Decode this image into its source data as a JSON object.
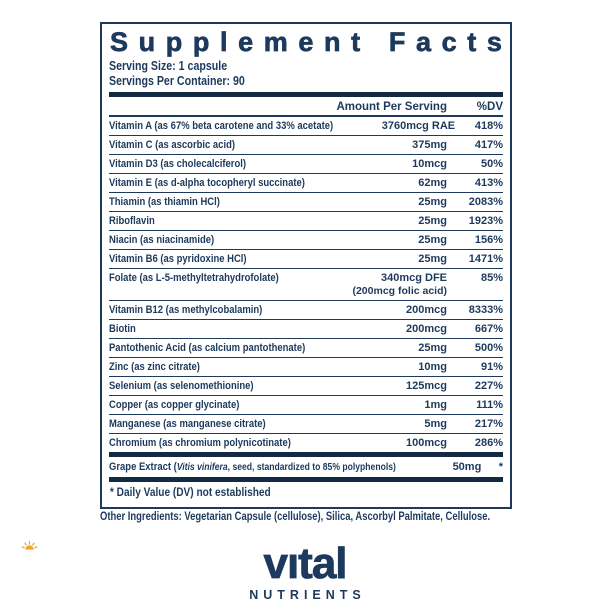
{
  "panel": {
    "title": "Supplement Facts",
    "serving_size": "Serving Size: 1 capsule",
    "servings_per_container": "Servings Per Container: 90",
    "columns": {
      "amount": "Amount Per Serving",
      "dv": "%DV"
    },
    "rows": [
      {
        "name": "Vitamin A (as 67% beta carotene and 33% acetate)",
        "amount": "3760mcg RAE",
        "dv": "418%"
      },
      {
        "name": "Vitamin C (as ascorbic acid)",
        "amount": "375mg",
        "dv": "417%"
      },
      {
        "name": "Vitamin D3 (as cholecalciferol)",
        "amount": "10mcg",
        "dv": "50%"
      },
      {
        "name": "Vitamin E (as d-alpha tocopheryl succinate)",
        "amount": "62mg",
        "dv": "413%"
      },
      {
        "name": "Thiamin (as thiamin HCl)",
        "amount": "25mg",
        "dv": "2083%"
      },
      {
        "name": "Riboflavin",
        "amount": "25mg",
        "dv": "1923%"
      },
      {
        "name": "Niacin (as niacinamide)",
        "amount": "25mg",
        "dv": "156%"
      },
      {
        "name": "Vitamin B6 (as pyridoxine HCl)",
        "amount": "25mg",
        "dv": "1471%"
      },
      {
        "name": "Folate (as L-5-methyltetrahydrofolate)",
        "amount": "340mcg DFE",
        "amount_note": "(200mcg folic acid)",
        "dv": "85%"
      },
      {
        "name": "Vitamin B12 (as methylcobalamin)",
        "amount": "200mcg",
        "dv": "8333%"
      },
      {
        "name": "Biotin",
        "amount": "200mcg",
        "dv": "667%"
      },
      {
        "name": "Pantothenic Acid (as calcium pantothenate)",
        "amount": "25mg",
        "dv": "500%"
      },
      {
        "name": "Zinc (as zinc citrate)",
        "amount": "10mg",
        "dv": "91%"
      },
      {
        "name": "Selenium (as selenomethionine)",
        "amount": "125mcg",
        "dv": "227%"
      },
      {
        "name": "Copper (as copper glycinate)",
        "amount": "1mg",
        "dv": "111%"
      },
      {
        "name": "Manganese (as manganese citrate)",
        "amount": "5mg",
        "dv": "217%"
      },
      {
        "name": "Chromium (as chromium polynicotinate)",
        "amount": "100mcg",
        "dv": "286%"
      }
    ],
    "grape": {
      "name_prefix": "Grape Extract (",
      "name_italic": "Vitis vinifera",
      "name_rest": ", seed, standardized to 85% polyphenols)",
      "amount": "50mg",
      "dv": "*"
    },
    "footnote": "* Daily Value (DV) not established"
  },
  "other_ingredients": "Other Ingredients: Vegetarian Capsule (cellulose), Silica, Ascorbyl Palmitate, Cellulose.",
  "logo": {
    "brand": "vital",
    "brand_display": "vıtal",
    "subbrand": "NUTRIENTS",
    "navy": "#1d3a5c",
    "sun_color": "#f2a71c"
  }
}
